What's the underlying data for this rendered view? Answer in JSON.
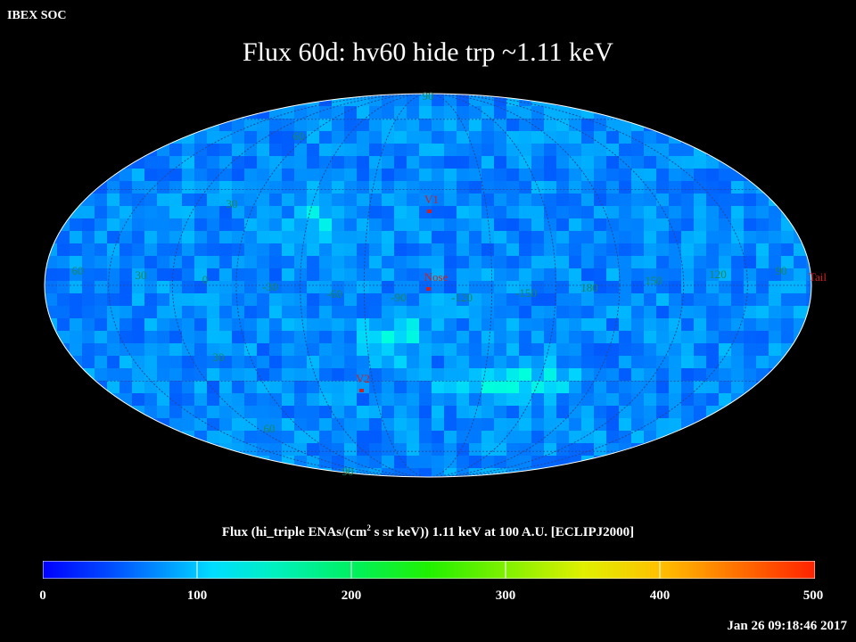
{
  "header": {
    "soc_label": "IBEX SOC",
    "title": "Flux   60d: hv60 hide trp ~1.11 keV"
  },
  "map": {
    "lat_labels": [
      "60",
      "60",
      "30",
      "30",
      "60"
    ],
    "lon_labels": [
      "60",
      "30",
      "0",
      "-30",
      "-60",
      "-90",
      "-120",
      "-150",
      "180",
      "150",
      "120",
      "90"
    ],
    "pole_labels": [
      "90",
      "90"
    ],
    "markers": [
      {
        "name": "v1",
        "label": "V1"
      },
      {
        "name": "nose",
        "label": "Nose"
      },
      {
        "name": "v2",
        "label": "V2"
      },
      {
        "name": "tail",
        "label": "Tail"
      }
    ],
    "marker_color": "#cc2222",
    "grid_label_color": "#1a8a5a",
    "color_min_value": 0,
    "color_max_value": 500
  },
  "colorbar": {
    "label_pre": "Flux (hi_triple ENAs/(cm",
    "label_sup": "2",
    "label_post": " s sr keV))  1.11 keV at 100 A.U. [ECLIPJ2000]",
    "ticks": [
      "0",
      "100",
      "200",
      "300",
      "400",
      "500"
    ],
    "min": 0,
    "max": 500
  },
  "timestamp": "Jan 26 09:18:46 2017"
}
